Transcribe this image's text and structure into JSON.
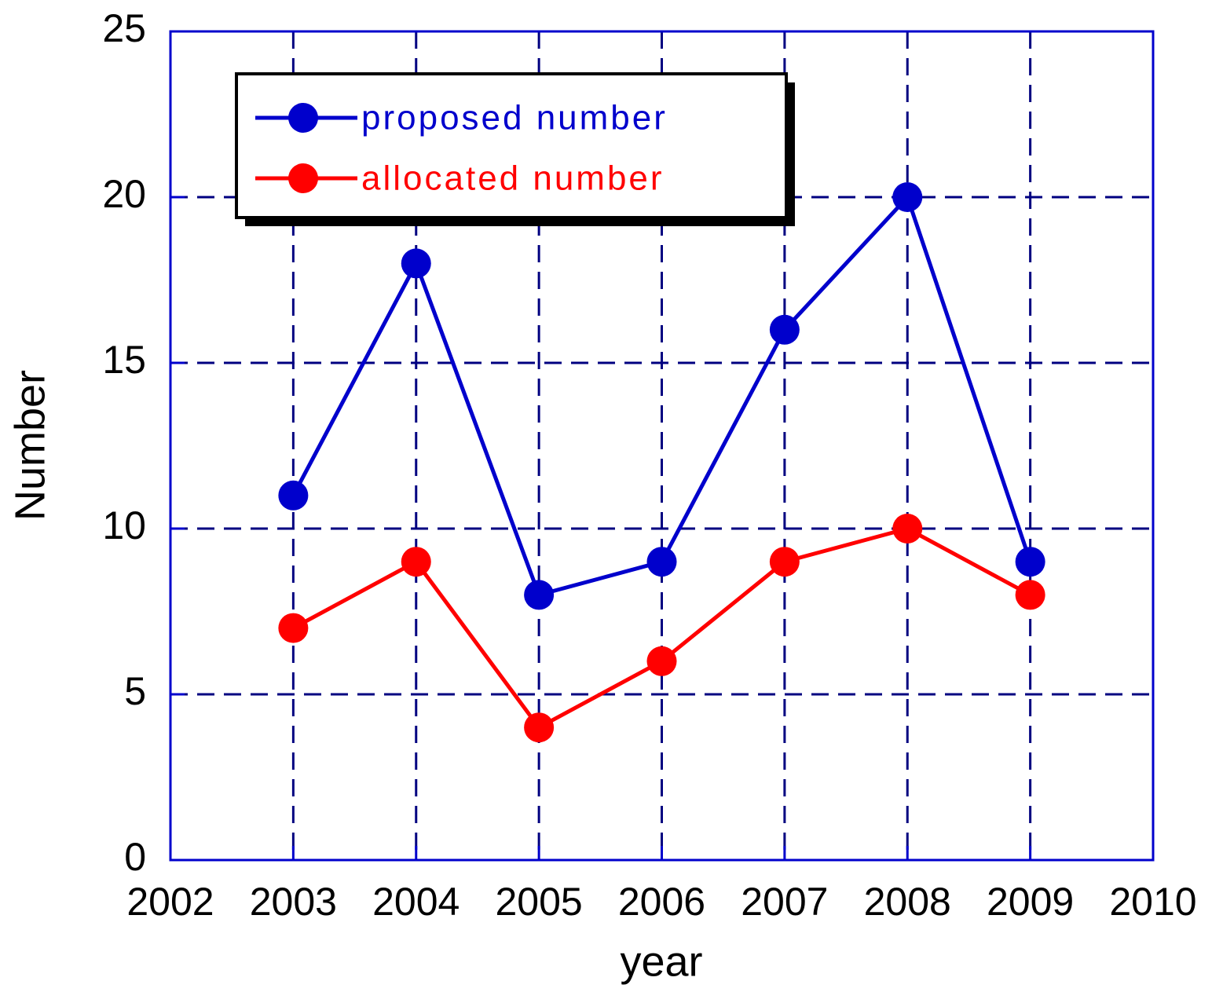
{
  "chart_data": {
    "type": "line",
    "xlabel": "year",
    "ylabel": "Number",
    "x": [
      2003,
      2004,
      2005,
      2006,
      2007,
      2008,
      2009
    ],
    "series": [
      {
        "name": "proposed number",
        "color": "#0000cc",
        "values": [
          11,
          18,
          8,
          9,
          16,
          20,
          9
        ]
      },
      {
        "name": "allocated number",
        "color": "#ff0000",
        "values": [
          7,
          9,
          4,
          6,
          9,
          10,
          8
        ]
      }
    ],
    "xlim": [
      2002,
      2010
    ],
    "xticks": [
      2002,
      2003,
      2004,
      2005,
      2006,
      2007,
      2008,
      2009,
      2010
    ],
    "ylim": [
      0,
      25
    ],
    "yticks": [
      0,
      5,
      10,
      15,
      20,
      25
    ],
    "grid": true,
    "legend": "upper left"
  }
}
